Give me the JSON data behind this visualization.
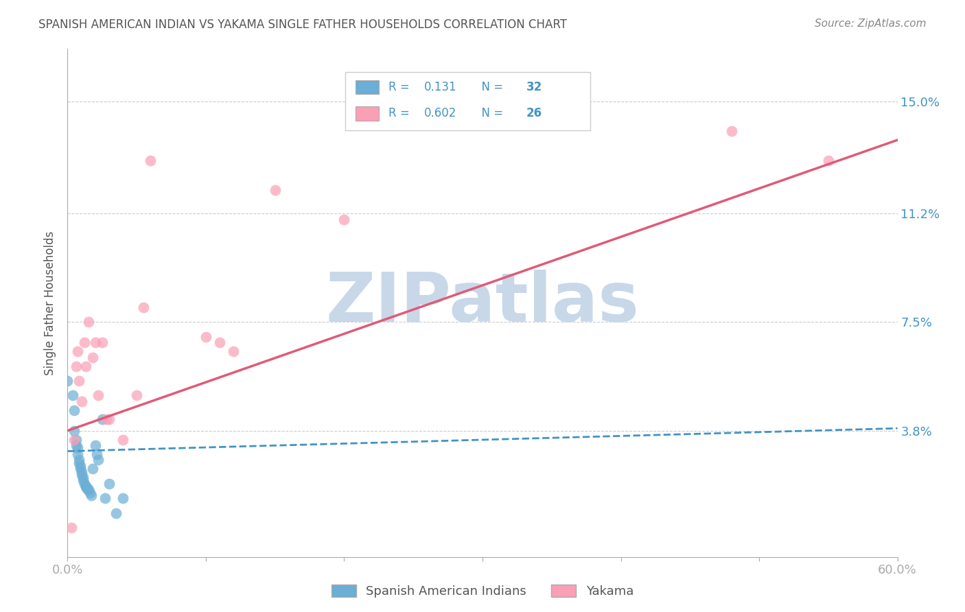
{
  "title": "SPANISH AMERICAN INDIAN VS YAKAMA SINGLE FATHER HOUSEHOLDS CORRELATION CHART",
  "source": "Source: ZipAtlas.com",
  "ylabel": "Single Father Households",
  "ytick_labels": [
    "3.8%",
    "7.5%",
    "11.2%",
    "15.0%"
  ],
  "ytick_values": [
    0.038,
    0.075,
    0.112,
    0.15
  ],
  "xlim": [
    0.0,
    0.6
  ],
  "ylim": [
    -0.005,
    0.168
  ],
  "watermark": "ZIPatlas",
  "legend_blue_R": "0.131",
  "legend_blue_N": "32",
  "legend_pink_R": "0.602",
  "legend_pink_N": "26",
  "blue_scatter_x": [
    0.0,
    0.004,
    0.005,
    0.005,
    0.006,
    0.006,
    0.007,
    0.007,
    0.008,
    0.008,
    0.009,
    0.009,
    0.01,
    0.01,
    0.011,
    0.011,
    0.012,
    0.013,
    0.013,
    0.014,
    0.015,
    0.016,
    0.017,
    0.018,
    0.02,
    0.021,
    0.022,
    0.025,
    0.027,
    0.03,
    0.035,
    0.04
  ],
  "blue_scatter_y": [
    0.055,
    0.05,
    0.045,
    0.038,
    0.035,
    0.033,
    0.032,
    0.03,
    0.028,
    0.027,
    0.026,
    0.025,
    0.024,
    0.023,
    0.022,
    0.021,
    0.02,
    0.019,
    0.019,
    0.018,
    0.018,
    0.017,
    0.016,
    0.025,
    0.033,
    0.03,
    0.028,
    0.042,
    0.015,
    0.02,
    0.01,
    0.015
  ],
  "pink_scatter_x": [
    0.003,
    0.005,
    0.006,
    0.007,
    0.008,
    0.01,
    0.012,
    0.013,
    0.015,
    0.018,
    0.02,
    0.022,
    0.025,
    0.028,
    0.03,
    0.04,
    0.05,
    0.055,
    0.06,
    0.1,
    0.11,
    0.12,
    0.15,
    0.2,
    0.48,
    0.55
  ],
  "pink_scatter_y": [
    0.005,
    0.035,
    0.06,
    0.065,
    0.055,
    0.048,
    0.068,
    0.06,
    0.075,
    0.063,
    0.068,
    0.05,
    0.068,
    0.042,
    0.042,
    0.035,
    0.05,
    0.08,
    0.13,
    0.07,
    0.068,
    0.065,
    0.12,
    0.11,
    0.14,
    0.13
  ],
  "blue_line_y_intercept": 0.031,
  "blue_line_slope": 0.013,
  "pink_line_y_intercept": 0.038,
  "pink_line_slope": 0.165,
  "blue_color": "#6baed6",
  "pink_color": "#fa9fb5",
  "blue_line_color": "#4393c3",
  "pink_line_color": "#e05a78",
  "grid_color": "#cccccc",
  "background_color": "#ffffff",
  "tick_label_color": "#4393c3",
  "title_color": "#555555",
  "watermark_color": "#c8d8e8"
}
